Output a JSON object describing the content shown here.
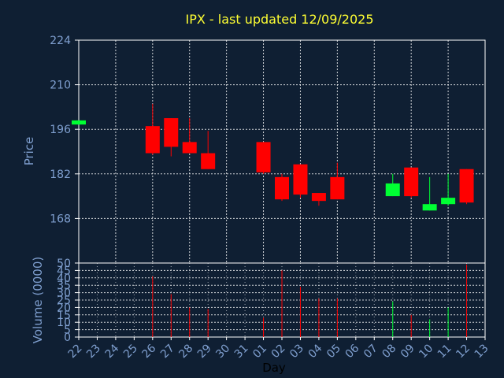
{
  "chart_data": [
    {
      "type": "candlestick",
      "title": "IPX - last updated 12/09/2025",
      "ylabel": "Price",
      "ylim": [
        154,
        224
      ],
      "yticks": [
        224,
        210,
        196,
        182,
        168
      ],
      "grid": true,
      "colors": {
        "up": "#00ff33",
        "down": "#ff0000",
        "background": "#0f1f33",
        "text": "#7f9fcf",
        "title": "#ffff33"
      },
      "candles": [
        {
          "day": "22",
          "open": 197.5,
          "high": 198.8,
          "low": 197.5,
          "close": 198.8
        },
        {
          "day": "26",
          "open": 197.0,
          "high": 204.0,
          "low": 188.0,
          "close": 188.5
        },
        {
          "day": "27",
          "open": 199.5,
          "high": 199.5,
          "low": 187.5,
          "close": 190.5
        },
        {
          "day": "28",
          "open": 192.0,
          "high": 199.5,
          "low": 188.5,
          "close": 188.5
        },
        {
          "day": "29",
          "open": 188.5,
          "high": 195.5,
          "low": 183.5,
          "close": 183.5
        },
        {
          "day": "01",
          "open": 192.0,
          "high": 192.0,
          "low": 182.0,
          "close": 182.5
        },
        {
          "day": "02",
          "open": 181.0,
          "high": 182.0,
          "low": 173.5,
          "close": 174.0
        },
        {
          "day": "03",
          "open": 185.0,
          "high": 185.0,
          "low": 174.5,
          "close": 175.5
        },
        {
          "day": "04",
          "open": 176.0,
          "high": 176.0,
          "low": 172.0,
          "close": 173.5
        },
        {
          "day": "05",
          "open": 181.0,
          "high": 185.5,
          "low": 174.0,
          "close": 174.0
        },
        {
          "day": "08",
          "open": 175.0,
          "high": 182.0,
          "low": 175.0,
          "close": 179.0
        },
        {
          "day": "09",
          "open": 184.0,
          "high": 184.0,
          "low": 174.5,
          "close": 175.0
        },
        {
          "day": "10",
          "open": 170.5,
          "high": 181.0,
          "low": 170.5,
          "close": 172.5
        },
        {
          "day": "11",
          "open": 172.5,
          "high": 182.0,
          "low": 172.0,
          "close": 174.5
        },
        {
          "day": "12",
          "open": 183.5,
          "high": 183.5,
          "low": 172.5,
          "close": 173.0
        }
      ]
    },
    {
      "type": "bar",
      "ylabel": "Volume (0000)",
      "xlabel": "Day",
      "ylim": [
        0,
        50
      ],
      "yticks": [
        50,
        45,
        40,
        35,
        30,
        25,
        20,
        15,
        10,
        5,
        0
      ],
      "x_tick_labels": [
        "22",
        "23",
        "24",
        "25",
        "26",
        "27",
        "28",
        "29",
        "30",
        "31",
        "01",
        "02",
        "03",
        "04",
        "05",
        "06",
        "07",
        "08",
        "09",
        "10",
        "11",
        "12",
        "13"
      ],
      "bars": [
        {
          "day": "22",
          "value": 0,
          "color": "#00ff33"
        },
        {
          "day": "26",
          "value": 41,
          "color": "#ff0000"
        },
        {
          "day": "27",
          "value": 29,
          "color": "#ff0000"
        },
        {
          "day": "28",
          "value": 20,
          "color": "#ff0000"
        },
        {
          "day": "29",
          "value": 19,
          "color": "#ff0000"
        },
        {
          "day": "01",
          "value": 13,
          "color": "#ff0000"
        },
        {
          "day": "02",
          "value": 45,
          "color": "#ff0000"
        },
        {
          "day": "03",
          "value": 34,
          "color": "#ff0000"
        },
        {
          "day": "04",
          "value": 26,
          "color": "#ff0000"
        },
        {
          "day": "05",
          "value": 26,
          "color": "#ff0000"
        },
        {
          "day": "08",
          "value": 24,
          "color": "#00ff33"
        },
        {
          "day": "09",
          "value": 15,
          "color": "#ff0000"
        },
        {
          "day": "10",
          "value": 12,
          "color": "#00ff33"
        },
        {
          "day": "11",
          "value": 20,
          "color": "#00ff33"
        },
        {
          "day": "12",
          "value": 49,
          "color": "#ff0000"
        }
      ]
    }
  ]
}
